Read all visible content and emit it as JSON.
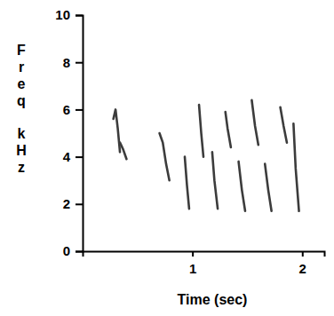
{
  "chart_data": {
    "type": "line",
    "xlabel": "Time (sec)",
    "ylabel": "Freq kHz",
    "xlim": [
      0,
      2.2
    ],
    "xticks": [
      1,
      2
    ],
    "ylim": [
      0,
      10
    ],
    "yticks": [
      0,
      2,
      4,
      6,
      8,
      10
    ],
    "color": "#3c3c3c",
    "grid": false,
    "series": [
      {
        "x": [
          0.28,
          0.3,
          0.32,
          0.34
        ],
        "values": [
          5.6,
          6.0,
          5.2,
          4.2
        ]
      },
      {
        "x": [
          0.34,
          0.37,
          0.4
        ],
        "values": [
          4.6,
          4.3,
          3.9
        ]
      },
      {
        "x": [
          0.7,
          0.73,
          0.76,
          0.79
        ],
        "values": [
          5.0,
          4.6,
          3.7,
          3.0
        ]
      },
      {
        "x": [
          0.93,
          0.95,
          0.97
        ],
        "values": [
          4.0,
          2.8,
          1.8
        ]
      },
      {
        "x": [
          1.06,
          1.08,
          1.1
        ],
        "values": [
          6.2,
          5.0,
          4.0
        ]
      },
      {
        "x": [
          1.18,
          1.2,
          1.23
        ],
        "values": [
          4.2,
          3.0,
          1.8
        ]
      },
      {
        "x": [
          1.3,
          1.32,
          1.35
        ],
        "values": [
          5.9,
          5.2,
          4.4
        ]
      },
      {
        "x": [
          1.42,
          1.45,
          1.48
        ],
        "values": [
          3.8,
          2.6,
          1.7
        ]
      },
      {
        "x": [
          1.54,
          1.57,
          1.6
        ],
        "values": [
          6.4,
          5.3,
          4.5
        ]
      },
      {
        "x": [
          1.66,
          1.69,
          1.72
        ],
        "values": [
          3.7,
          2.6,
          1.7
        ]
      },
      {
        "x": [
          1.8,
          1.83,
          1.86
        ],
        "values": [
          6.1,
          5.3,
          4.6
        ]
      },
      {
        "x": [
          1.92,
          1.94,
          1.97
        ],
        "values": [
          5.4,
          3.5,
          1.7
        ]
      }
    ]
  }
}
